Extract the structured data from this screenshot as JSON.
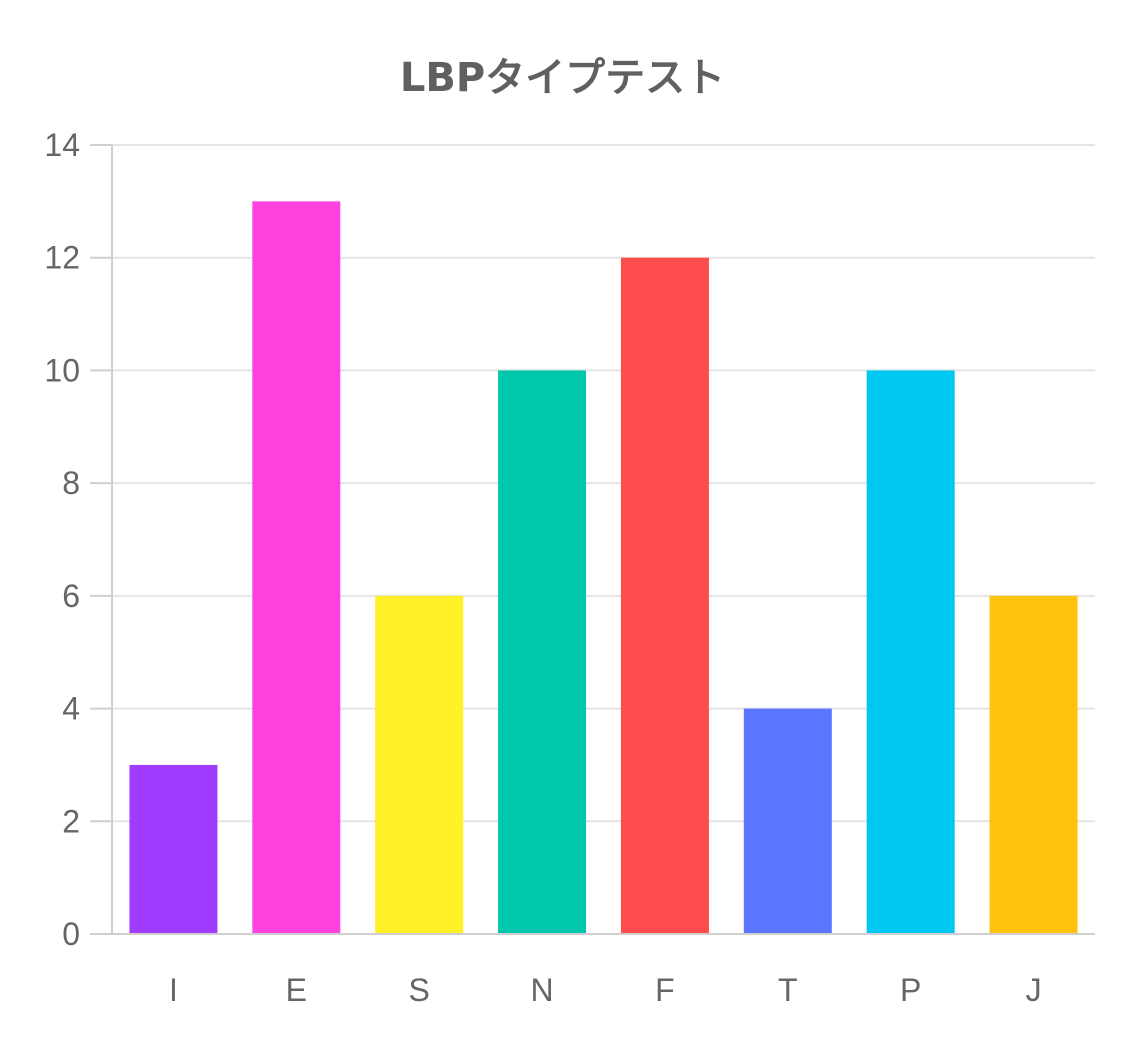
{
  "chart_data": {
    "type": "bar",
    "title": "LBPタイプテスト",
    "categories": [
      "I",
      "E",
      "S",
      "N",
      "F",
      "T",
      "P",
      "J"
    ],
    "values": [
      3,
      13,
      6,
      10,
      12,
      4,
      10,
      6
    ],
    "colors": [
      "#a03cff",
      "#ff42dd",
      "#fff027",
      "#00c8ad",
      "#ff4d4d",
      "#5b75ff",
      "#00c8f0",
      "#ffc20e"
    ],
    "ylim": [
      0,
      14
    ],
    "yticks": [
      0,
      2,
      4,
      6,
      8,
      10,
      12,
      14
    ],
    "grid": true,
    "legend": "none"
  }
}
